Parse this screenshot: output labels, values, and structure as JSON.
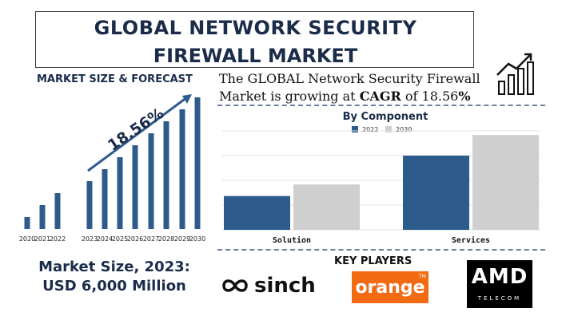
{
  "title": {
    "line1": "GLOBAL NETWORK SECURITY",
    "line2": "FIREWALL MARKET"
  },
  "section_label": "MARKET SIZE & FORECAST",
  "cagr": {
    "prefix": "The GLOBAL Network Security Firewall Market is growing at ",
    "cagr_word": "CAGR",
    "middle": " of 18.56",
    "suffix": "%"
  },
  "market_size": {
    "line1": "Market Size, 2023:",
    "line2": "USD 6,000 Million"
  },
  "key_players": {
    "label": "KEY PLAYERS",
    "sinch": "sinch",
    "orange": "orange",
    "orange_tm": "TM",
    "amd": "AMD",
    "amd_sub": "TELECOM"
  },
  "colors": {
    "navy": "#1b2c4a",
    "series2022": "#2d5b8c",
    "series2030": "#cfcfcf",
    "orange": "#f26b12"
  },
  "icons": [
    "growth-chart-icon"
  ],
  "chart_data": [
    {
      "type": "bar",
      "title": "",
      "categories": [
        "2020",
        "2021",
        "2022",
        "2023",
        "2024",
        "2025",
        "2026",
        "2027",
        "2028",
        "2029",
        "2030"
      ],
      "values": [
        1,
        2,
        3,
        4,
        5,
        6,
        7,
        8,
        9,
        10,
        11
      ],
      "annotation": "18.56%",
      "ylim": [
        0,
        11
      ],
      "grid": false
    },
    {
      "type": "bar",
      "title": "By Component",
      "categories": [
        "Solution",
        "Services"
      ],
      "series": [
        {
          "name": "2022",
          "values": [
            41,
            90
          ]
        },
        {
          "name": "2030",
          "values": [
            55,
            115
          ]
        }
      ],
      "ylim": [
        0,
        120
      ],
      "grid": true,
      "legend": "top"
    }
  ]
}
